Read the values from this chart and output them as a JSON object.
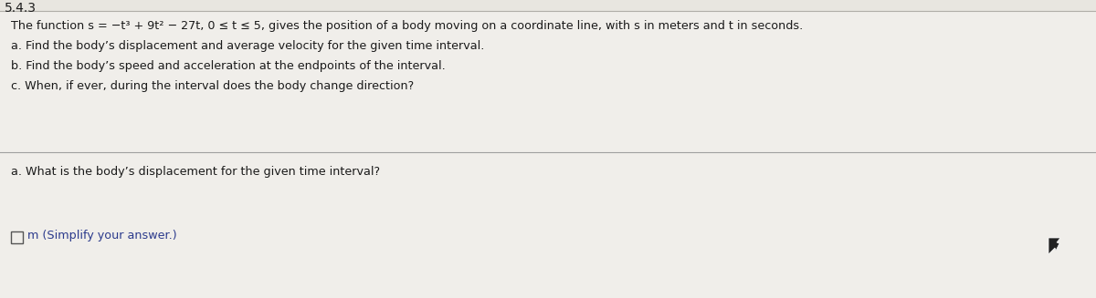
{
  "bg_color": "#e8e6e0",
  "section1_bg": "#f0eeea",
  "section2_bg": "#f5f4f0",
  "text_color": "#1a1a1a",
  "answer_text_color": "#2b3a8c",
  "header_text": "5.4.3",
  "line1": "The function s = −t³ + 9t² − 27t, 0 ≤ t ≤ 5, gives the position of a body moving on a coordinate line, with s in meters and t in seconds.",
  "line2": "a. Find the body’s displacement and average velocity for the given time interval.",
  "line3": "b. Find the body’s speed and acceleration at the endpoints of the interval.",
  "line4": "c. When, if ever, during the interval does the body change direction?",
  "question_line": "a. What is the body’s displacement for the given time interval?",
  "answer_line": "m (Simplify your answer.)",
  "figwidth": 12.0,
  "figheight": 3.27,
  "dpi": 100
}
